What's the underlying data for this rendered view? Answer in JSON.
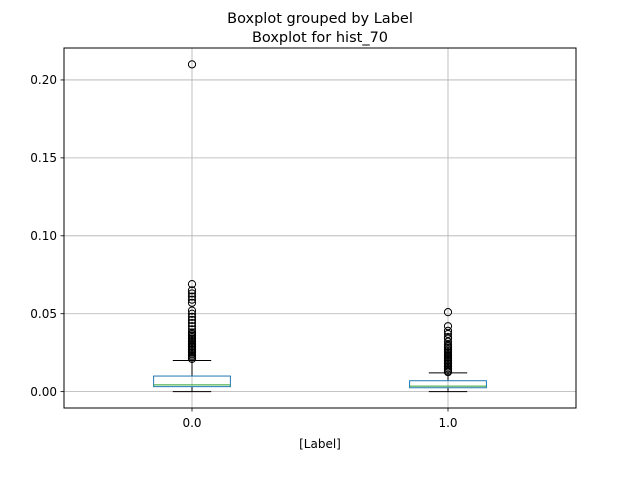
{
  "chart_data": {
    "type": "boxplot",
    "suptitle": "Boxplot grouped by Label",
    "title": "Boxplot for hist_70",
    "xlabel": "[Label]",
    "ylabel": "",
    "categories": [
      "0.0",
      "1.0"
    ],
    "ylim": [
      -0.0105,
      0.2205
    ],
    "yticks": [
      0.0,
      0.05,
      0.1,
      0.15,
      0.2
    ],
    "ytick_labels": [
      "0.00",
      "0.05",
      "0.10",
      "0.15",
      "0.20"
    ],
    "grid": true,
    "boxes": [
      {
        "category": "0.0",
        "whisker_low": 0.0,
        "q1": 0.0032,
        "median": 0.0043,
        "q3": 0.01,
        "whisker_high": 0.02,
        "outliers": [
          0.021,
          0.022,
          0.023,
          0.024,
          0.025,
          0.026,
          0.027,
          0.028,
          0.029,
          0.03,
          0.031,
          0.032,
          0.033,
          0.034,
          0.035,
          0.036,
          0.037,
          0.038,
          0.04,
          0.042,
          0.044,
          0.046,
          0.048,
          0.05,
          0.052,
          0.057,
          0.059,
          0.061,
          0.063,
          0.065,
          0.069,
          0.21
        ]
      },
      {
        "category": "1.0",
        "whisker_low": 0.0,
        "q1": 0.0025,
        "median": 0.0035,
        "q3": 0.007,
        "whisker_high": 0.012,
        "outliers": [
          0.0125,
          0.013,
          0.014,
          0.015,
          0.016,
          0.017,
          0.018,
          0.019,
          0.02,
          0.021,
          0.022,
          0.023,
          0.024,
          0.025,
          0.026,
          0.027,
          0.028,
          0.029,
          0.03,
          0.032,
          0.034,
          0.035,
          0.037,
          0.039,
          0.042,
          0.051
        ]
      }
    ],
    "colors": {
      "box": "#1f77b4",
      "median": "#2ca02c",
      "whisker": "#000000",
      "grid": "#b0b0b0"
    }
  }
}
